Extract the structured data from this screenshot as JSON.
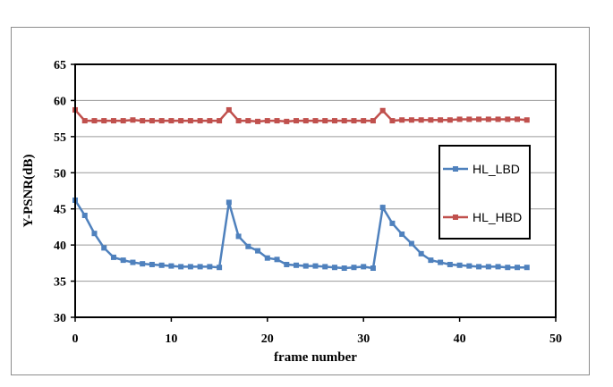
{
  "chart_data": {
    "type": "line",
    "xlabel": "frame number",
    "ylabel": "Y-PSNR(dB)",
    "xlim": [
      0,
      50
    ],
    "ylim": [
      30,
      65
    ],
    "xticks": [
      0,
      10,
      20,
      30,
      40,
      50
    ],
    "yticks": [
      30,
      35,
      40,
      45,
      50,
      55,
      60,
      65
    ],
    "grid": "horizontal",
    "legend_position": "right",
    "x": [
      0,
      1,
      2,
      3,
      4,
      5,
      6,
      7,
      8,
      9,
      10,
      11,
      12,
      13,
      14,
      15,
      16,
      17,
      18,
      19,
      20,
      21,
      22,
      23,
      24,
      25,
      26,
      27,
      28,
      29,
      30,
      31,
      32,
      33,
      34,
      35,
      36,
      37,
      38,
      39,
      40,
      41,
      42,
      43,
      44,
      45,
      46,
      47
    ],
    "series": [
      {
        "name": "HL_LBD",
        "color": "#4f81bd",
        "marker": "square",
        "values": [
          46.2,
          44.1,
          41.6,
          39.6,
          38.3,
          37.9,
          37.6,
          37.4,
          37.3,
          37.2,
          37.1,
          37.0,
          37.0,
          37.0,
          37.0,
          36.9,
          45.9,
          41.2,
          39.8,
          39.2,
          38.2,
          38.0,
          37.3,
          37.2,
          37.1,
          37.1,
          37.0,
          36.9,
          36.8,
          36.9,
          37.0,
          36.8,
          45.2,
          43.0,
          41.5,
          40.2,
          38.8,
          37.9,
          37.6,
          37.3,
          37.2,
          37.1,
          37.0,
          37.0,
          37.0,
          36.9,
          36.9,
          36.9
        ]
      },
      {
        "name": "HL_HBD",
        "color": "#c0504d",
        "marker": "square",
        "values": [
          58.7,
          57.2,
          57.2,
          57.2,
          57.2,
          57.2,
          57.3,
          57.2,
          57.2,
          57.2,
          57.2,
          57.2,
          57.2,
          57.2,
          57.2,
          57.2,
          58.7,
          57.2,
          57.2,
          57.1,
          57.2,
          57.2,
          57.1,
          57.2,
          57.2,
          57.2,
          57.2,
          57.2,
          57.2,
          57.2,
          57.2,
          57.2,
          58.6,
          57.2,
          57.3,
          57.3,
          57.3,
          57.3,
          57.3,
          57.3,
          57.4,
          57.4,
          57.4,
          57.4,
          57.4,
          57.4,
          57.4,
          57.3
        ]
      }
    ]
  }
}
